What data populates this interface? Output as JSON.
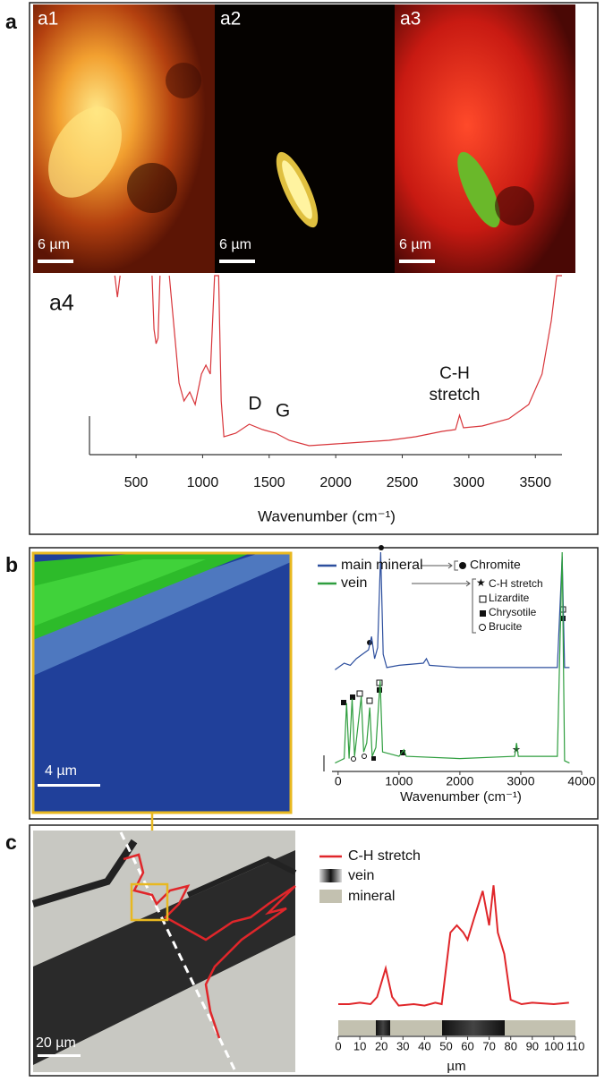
{
  "panel_labels": [
    "a",
    "b",
    "c"
  ],
  "image_labels": [
    "a1",
    "a2",
    "a3"
  ],
  "scale_bars": [
    "6 µm",
    "6 µm",
    "6 µm",
    "4 µm",
    "20 µm"
  ],
  "chart_data": [
    {
      "type": "line",
      "label": "a4",
      "x_label": "Wavenumber (cm⁻¹)",
      "annotations": [
        "D",
        "G"
      ],
      "peak_label": [
        "C-H",
        "stretch"
      ],
      "xlim": [
        150,
        3700
      ],
      "xticks": [
        500,
        1000,
        1500,
        2000,
        2500,
        3000,
        3500
      ],
      "ylim": [
        0,
        100
      ],
      "grid": false,
      "series": [
        {
          "color": "#d8353a",
          "x": [
            340,
            360,
            380,
            600,
            620,
            635,
            650,
            665,
            680,
            700,
            750,
            823,
            860,
            903,
            944,
            991,
            1025,
            1058,
            1090,
            1120,
            1140,
            1160,
            1250,
            1350,
            1450,
            1550,
            1650,
            1800,
            2000,
            2200,
            2400,
            2600,
            2800,
            2900,
            2930,
            2960,
            3100,
            3300,
            3450,
            3550,
            3620,
            3660,
            3700
          ],
          "values": [
            100,
            88,
            100,
            null,
            100,
            70,
            62,
            65,
            100,
            null,
            100,
            40,
            30,
            35,
            28,
            45,
            50,
            45,
            100,
            100,
            30,
            10,
            12,
            17,
            14,
            12,
            8,
            5,
            6,
            7,
            8,
            10,
            13,
            14,
            22,
            15,
            16,
            20,
            28,
            45,
            75,
            100,
            100
          ]
        }
      ]
    },
    {
      "type": "line",
      "x_label": "Wavenumber (cm⁻¹)",
      "assignments": [
        "Chromite",
        "C-H stretch",
        "Lizardite",
        "Chrysotile",
        "Brucite"
      ],
      "xlim": [
        -100,
        4000
      ],
      "xticks": [
        0,
        1000,
        2000,
        3000,
        4000
      ],
      "ylim": [
        0,
        100
      ],
      "grid": false,
      "series": [
        {
          "name": "main mineral",
          "color": "#2d4f9e",
          "x": [
            -50,
            100,
            200,
            300,
            400,
            500,
            550,
            600,
            650,
            700,
            740,
            800,
            1000,
            1400,
            1450,
            1500,
            2000,
            3000,
            3600,
            3680,
            3720,
            3800
          ],
          "values": [
            45,
            48,
            47,
            50,
            52,
            54,
            60,
            50,
            55,
            98,
            52,
            46,
            47,
            48,
            50,
            47,
            46,
            46,
            46,
            96,
            46,
            46
          ]
        },
        {
          "name": "vein",
          "color": "#2f9e3f",
          "x": [
            -50,
            100,
            140,
            180,
            230,
            270,
            380,
            420,
            470,
            520,
            560,
            620,
            690,
            730,
            1000,
            1080,
            1120,
            2000,
            2900,
            2930,
            2960,
            3600,
            3680,
            3720,
            3800
          ],
          "values": [
            3,
            5,
            30,
            5,
            32,
            6,
            33,
            8,
            12,
            28,
            6,
            10,
            40,
            8,
            6,
            9,
            6,
            5,
            6,
            12,
            6,
            6,
            98,
            4,
            3
          ]
        }
      ]
    },
    {
      "type": "line",
      "x_label": "µm",
      "bar_legend": [
        "vein",
        "mineral"
      ],
      "xlim": [
        0,
        110
      ],
      "xticks": [
        0,
        10,
        20,
        30,
        40,
        50,
        60,
        70,
        80,
        90,
        100,
        110
      ],
      "ylim": [
        0,
        100
      ],
      "grid": false,
      "series": [
        {
          "name": "C-H stretch",
          "color": "#e0262a",
          "x": [
            0,
            5,
            10,
            15,
            18,
            22,
            25,
            28,
            35,
            40,
            45,
            48,
            52,
            55,
            58,
            60,
            63,
            67,
            70,
            72,
            74,
            77,
            80,
            85,
            90,
            100,
            107
          ],
          "values": [
            5,
            5,
            6,
            5,
            10,
            30,
            10,
            4,
            5,
            4,
            6,
            5,
            55,
            60,
            55,
            50,
            65,
            84,
            60,
            88,
            55,
            40,
            8,
            5,
            6,
            5,
            6
          ]
        }
      ]
    }
  ]
}
